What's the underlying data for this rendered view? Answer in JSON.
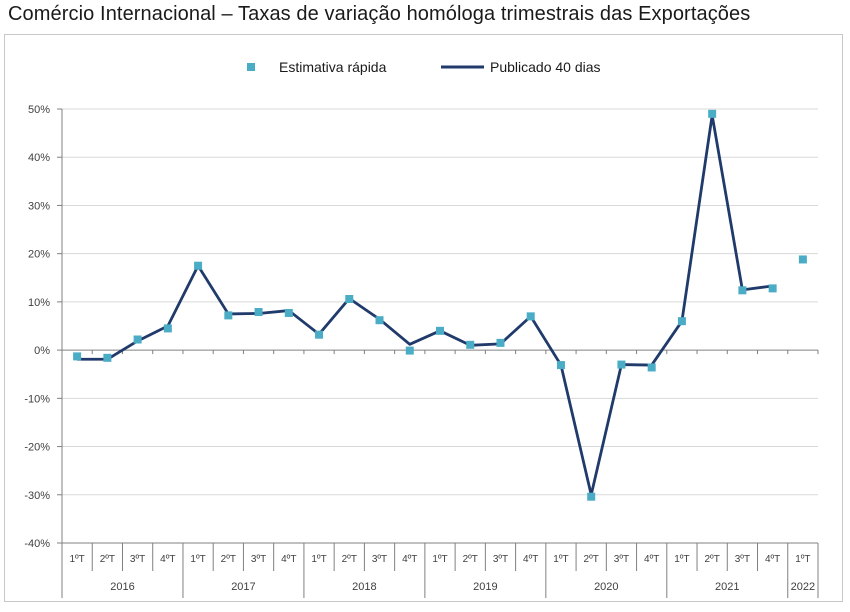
{
  "title": "Comércio Internacional – Taxas de variação homóloga trimestrais das Exportações",
  "chart_data": {
    "type": "line",
    "ylim": [
      -40,
      50
    ],
    "yticks": [
      -40,
      -30,
      -20,
      -10,
      0,
      10,
      20,
      30,
      40,
      50
    ],
    "ytick_labels": [
      "-40%",
      "-30%",
      "-20%",
      "-10%",
      "0%",
      "10%",
      "20%",
      "30%",
      "40%",
      "50%"
    ],
    "grid": true,
    "legend_position": "top-center",
    "colors": {
      "line": "#1f3a6b",
      "marker": "#4bacc6",
      "grid": "#d9d9d9",
      "axis": "#808080",
      "text": "#404040"
    },
    "quarters": [
      "1ºT",
      "2ºT",
      "3ºT",
      "4ºT",
      "1ºT",
      "2ºT",
      "3ºT",
      "4ºT",
      "1ºT",
      "2ºT",
      "3ºT",
      "4ºT",
      "1ºT",
      "2ºT",
      "3ºT",
      "4ºT",
      "1ºT",
      "2ºT",
      "3ºT",
      "4ºT",
      "1ºT",
      "2ºT",
      "3ºT",
      "4ºT",
      "1ºT"
    ],
    "years": [
      {
        "label": "2016",
        "count": 4
      },
      {
        "label": "2017",
        "count": 4
      },
      {
        "label": "2018",
        "count": 4
      },
      {
        "label": "2019",
        "count": 4
      },
      {
        "label": "2020",
        "count": 4
      },
      {
        "label": "2021",
        "count": 4
      },
      {
        "label": "2022",
        "count": 1
      }
    ],
    "series": [
      {
        "name": "Estimativa rápida",
        "kind": "marker",
        "values": [
          -1.3,
          -1.6,
          2.2,
          4.5,
          17.5,
          7.2,
          7.9,
          7.7,
          3.2,
          10.6,
          6.2,
          -0.1,
          4.0,
          1.1,
          1.5,
          7.0,
          -3.1,
          -30.4,
          -3.0,
          -3.6,
          6.0,
          49.0,
          12.4,
          12.8,
          18.8
        ]
      },
      {
        "name": "Publicado 40 dias",
        "kind": "line",
        "values": [
          -1.9,
          -1.9,
          1.9,
          5.0,
          17.5,
          7.5,
          7.6,
          8.2,
          3.3,
          10.7,
          6.4,
          1.2,
          4.0,
          1.0,
          1.3,
          7.0,
          -3.1,
          -30.0,
          -3.0,
          -3.1,
          6.0,
          48.7,
          12.5,
          13.3,
          null
        ]
      }
    ]
  }
}
